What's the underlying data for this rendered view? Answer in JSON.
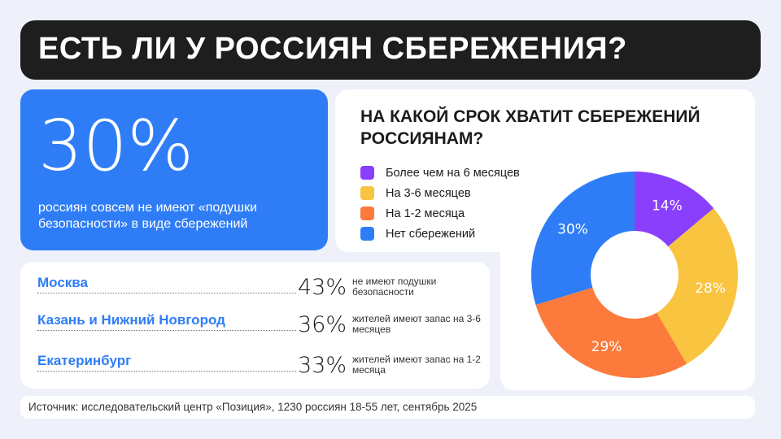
{
  "header": {
    "title": "ЕСТЬ ЛИ У РОССИЯН СБЕРЕЖЕНИЯ?"
  },
  "highlight": {
    "value": "30%",
    "text": "россиян совсем не имеют «подушки безопасности» в виде сбережений"
  },
  "cities": [
    {
      "name": "Москва",
      "value": "43%",
      "desc": "не имеют подушки безопасности"
    },
    {
      "name": "Казань и Нижний Новгород",
      "value": "36%",
      "desc": "жителей имеют запас на 3-6 месяцев"
    },
    {
      "name": "Екатеринбург",
      "value": "33%",
      "desc": "жителей имеют запас на 1-2 месяца"
    }
  ],
  "source": "Источник: исследовательский центр «Позиция», 1230 россиян 18-55 лет, сентябрь 2025",
  "chart_data": {
    "type": "pie",
    "donut": true,
    "title": "НА КАКОЙ СРОК ХВАТИТ СБЕРЕЖЕНИЙ РОССИЯНАМ?",
    "legend_position": "top-left",
    "categories": [
      "Более чем на 6 месяцев",
      "На 3-6 месяцев",
      "На 1-2 месяца",
      "Нет сбережений"
    ],
    "values": [
      14,
      28,
      29,
      30
    ],
    "labels": [
      "14%",
      "28%",
      "29%",
      "30%"
    ],
    "colors": [
      "#8a3ffc",
      "#f9c440",
      "#fb7a3c",
      "#2f7df6"
    ]
  }
}
